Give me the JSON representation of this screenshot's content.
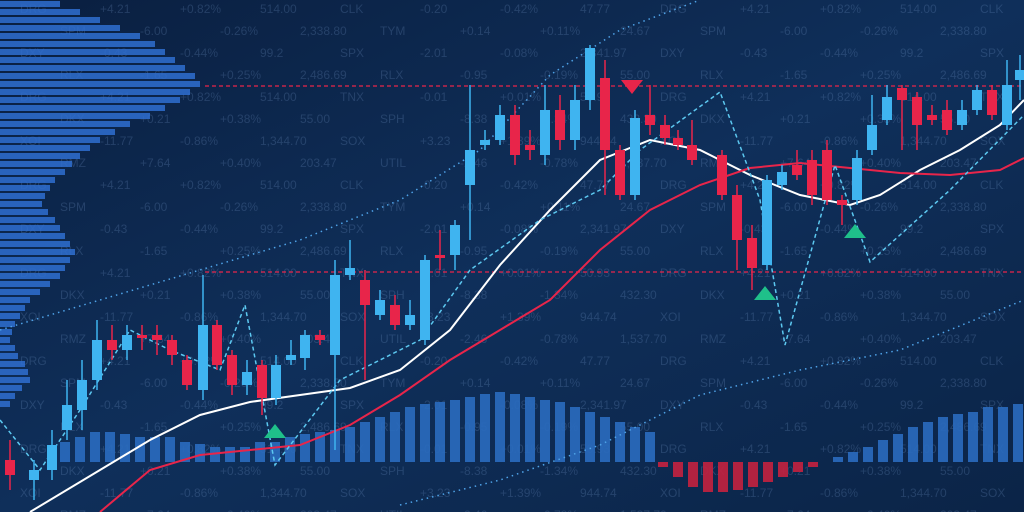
{
  "ticker": {
    "rows": [
      [
        "DRG",
        "+4.21",
        "+0.82%",
        "514.00",
        "CLK",
        "-0.20",
        "-0.42%",
        "47.77"
      ],
      [
        "SPM",
        "-6.00",
        "-0.26%",
        "2,338.80",
        "TYM",
        "+0.14",
        "+0.11%",
        "24.67"
      ],
      [
        "DXY",
        "-0.43",
        "-0.44%",
        "99.2",
        "SPX",
        "-2.01",
        "-0.08%",
        "2,341.97"
      ],
      [
        "RLX",
        "-1.65",
        "+0.25%",
        "2,486.69",
        "RLX",
        "-0.95",
        "-0.19%",
        "55.00"
      ],
      [
        "DRG",
        "+4.21",
        "+0.82%",
        "514.00",
        "TNX",
        "-0.01",
        "+0.01%",
        "50.93"
      ],
      [
        "DKX",
        "+0.21",
        "+0.38%",
        "55.00",
        "SPH",
        "-8.38",
        "-1.34%",
        "432.30"
      ],
      [
        "XOI",
        "-11.77",
        "-0.86%",
        "1,344.70",
        "SOX",
        "+3.23",
        "+1.39%",
        "944.74"
      ],
      [
        "RMZ",
        "+7.64",
        "+0.40%",
        "203.47",
        "UTIL",
        "-2.46",
        "-0.78%",
        "1,537.70"
      ]
    ]
  },
  "chart_data": {
    "type": "candlestick",
    "xlim": [
      0,
      1024
    ],
    "ylim": [
      0,
      512
    ],
    "y2lim": [
      -50,
      462
    ],
    "up_color": "#3fb4f0",
    "down_color": "#e8254a",
    "x": [
      10,
      34,
      52,
      67,
      82,
      97,
      112,
      127,
      142,
      157,
      172,
      187,
      203,
      217,
      232,
      247,
      262,
      276,
      291,
      305,
      320,
      335,
      350,
      365,
      380,
      395,
      410,
      425,
      440,
      455,
      470,
      485,
      500,
      515,
      530,
      545,
      560,
      575,
      590,
      605,
      620,
      635,
      650,
      665,
      678,
      692,
      722,
      737,
      752,
      767,
      782,
      797,
      812,
      827,
      842,
      857,
      872,
      887,
      902,
      917,
      932,
      947,
      962,
      977,
      992,
      1007,
      1020
    ],
    "open": [
      52,
      32,
      42,
      82,
      102,
      132,
      172,
      162,
      177,
      177,
      172,
      152,
      122,
      187,
      157,
      127,
      147,
      114,
      152,
      154,
      177,
      157,
      237,
      232,
      197,
      207,
      187,
      172,
      257,
      257,
      327,
      367,
      372,
      397,
      367,
      357,
      402,
      372,
      412,
      434,
      362,
      317,
      397,
      387,
      374,
      367,
      357,
      317,
      274,
      247,
      327,
      347,
      352,
      362,
      312,
      312,
      362,
      392,
      424,
      415,
      397,
      402,
      387,
      402,
      422,
      387,
      432
    ],
    "close": [
      37,
      42,
      67,
      107,
      132,
      172,
      162,
      177,
      174,
      172,
      157,
      127,
      187,
      147,
      127,
      140,
      114,
      147,
      157,
      177,
      172,
      237,
      244,
      207,
      212,
      187,
      197,
      252,
      254,
      287,
      362,
      372,
      397,
      357,
      362,
      402,
      372,
      412,
      464,
      362,
      317,
      394,
      387,
      374,
      367,
      352,
      317,
      272,
      244,
      332,
      340,
      337,
      317,
      312,
      307,
      354,
      387,
      415,
      412,
      387,
      392,
      382,
      402,
      422,
      397,
      427,
      442
    ],
    "high": [
      72,
      52,
      82,
      132,
      152,
      192,
      187,
      187,
      187,
      187,
      177,
      157,
      237,
      192,
      162,
      152,
      152,
      157,
      172,
      182,
      182,
      252,
      272,
      242,
      222,
      217,
      212,
      257,
      282,
      292,
      427,
      382,
      407,
      407,
      382,
      427,
      417,
      427,
      467,
      452,
      367,
      402,
      427,
      397,
      382,
      392,
      362,
      327,
      287,
      337,
      347,
      362,
      362,
      372,
      317,
      362,
      417,
      427,
      427,
      420,
      407,
      412,
      412,
      427,
      427,
      452,
      457
    ],
    "low": [
      22,
      12,
      32,
      72,
      82,
      122,
      152,
      152,
      162,
      157,
      147,
      122,
      112,
      142,
      117,
      117,
      97,
      107,
      147,
      142,
      167,
      62,
      232,
      132,
      192,
      182,
      182,
      167,
      242,
      242,
      272,
      362,
      367,
      347,
      352,
      347,
      362,
      362,
      402,
      317,
      312,
      312,
      377,
      367,
      362,
      347,
      312,
      242,
      222,
      242,
      322,
      332,
      307,
      307,
      287,
      307,
      357,
      387,
      362,
      362,
      387,
      377,
      382,
      397,
      392,
      382,
      412
    ],
    "lines": [
      {
        "color": "#ffffff",
        "style": "solid",
        "x": [
          30,
          100,
          150,
          200,
          250,
          300,
          350,
          400,
          450,
          500,
          550,
          600,
          650,
          700,
          750,
          800,
          850,
          880,
          920,
          960,
          1000,
          1024
        ],
        "values": [
          0,
          42,
          72,
          97,
          110,
          117,
          124,
          142,
          182,
          247,
          302,
          352,
          372,
          362,
          337,
          317,
          307,
          317,
          342,
          362,
          387,
          412
        ]
      },
      {
        "color": "#e8254a",
        "style": "solid",
        "x": [
          100,
          150,
          200,
          250,
          300,
          350,
          400,
          450,
          500,
          550,
          600,
          650,
          700,
          750,
          800,
          850,
          900,
          950,
          1000,
          1024
        ],
        "values": [
          0,
          42,
          57,
          62,
          67,
          87,
          117,
          152,
          182,
          212,
          262,
          302,
          327,
          344,
          349,
          344,
          339,
          337,
          342,
          354
        ]
      },
      {
        "color": "#4fa3e8",
        "style": "dotted",
        "x": [
          0,
          100,
          200,
          300,
          400,
          480,
          550,
          620,
          700
        ],
        "values": [
          182,
          212,
          242,
          272,
          312,
          362,
          437,
          482,
          512
        ]
      },
      {
        "color": "#4fa3e8",
        "style": "dotted",
        "x": [
          400,
          500,
          600,
          650,
          700,
          800,
          900,
          1024
        ],
        "values": [
          7,
          32,
          67,
          92,
          117,
          142,
          162,
          212
        ]
      },
      {
        "color": "#5cc8f0",
        "style": "dashed",
        "x": [
          0,
          40,
          80,
          130,
          170,
          220,
          245,
          275,
          340,
          420,
          470,
          540,
          600,
          640,
          720,
          760,
          785,
          835,
          870,
          950,
          1024
        ],
        "values": [
          92,
          42,
          102,
          182,
          162,
          142,
          207,
          47,
          132,
          172,
          242,
          292,
          322,
          362,
          420,
          312,
          167,
          347,
          250,
          322,
          397
        ]
      }
    ],
    "levels": {
      "color": "#e8254a",
      "values": [
        426,
        240
      ]
    },
    "markers": {
      "x": [
        632,
        275,
        765,
        855
      ],
      "values": [
        426,
        82,
        220,
        282
      ],
      "directions": [
        "down",
        "up",
        "up",
        "up"
      ],
      "colors": [
        "#e8254a",
        "#1fc08a",
        "#1fc08a",
        "#1fc08a"
      ]
    },
    "histogram": {
      "axis": "y2",
      "up_color": "#2a6bbf",
      "down_color": "#c4213f",
      "x": [
        65,
        80,
        95,
        110,
        125,
        140,
        155,
        170,
        185,
        200,
        215,
        230,
        245,
        260,
        275,
        290,
        305,
        320,
        335,
        350,
        365,
        380,
        395,
        410,
        425,
        440,
        455,
        470,
        485,
        500,
        515,
        530,
        545,
        560,
        575,
        590,
        605,
        620,
        635,
        650,
        663,
        678,
        693,
        708,
        723,
        738,
        753,
        768,
        783,
        798,
        813,
        838,
        853,
        868,
        883,
        898,
        913,
        928,
        943,
        958,
        973,
        988,
        1003,
        1018
      ],
      "values": [
        20,
        25,
        30,
        30,
        28,
        25,
        25,
        25,
        20,
        18,
        15,
        15,
        15,
        20,
        20,
        25,
        28,
        30,
        32,
        35,
        40,
        45,
        50,
        55,
        58,
        60,
        62,
        65,
        68,
        70,
        68,
        65,
        62,
        60,
        55,
        50,
        45,
        40,
        35,
        30,
        -5,
        -15,
        -25,
        -30,
        -30,
        -28,
        -25,
        -20,
        -15,
        -10,
        -5,
        5,
        10,
        15,
        22,
        28,
        35,
        40,
        45,
        48,
        50,
        55,
        55,
        58
      ]
    },
    "profile": {
      "color": "#2f6fd0",
      "values": [
        60,
        80,
        100,
        120,
        140,
        155,
        165,
        175,
        185,
        195,
        200,
        190,
        180,
        165,
        150,
        130,
        115,
        100,
        90,
        80,
        72,
        65,
        55,
        50,
        45,
        42,
        48,
        55,
        60,
        65,
        70,
        75,
        70,
        65,
        60,
        50,
        40,
        30,
        25,
        20,
        15,
        12,
        10,
        15,
        18,
        25,
        28,
        30,
        22,
        15,
        10
      ]
    }
  }
}
